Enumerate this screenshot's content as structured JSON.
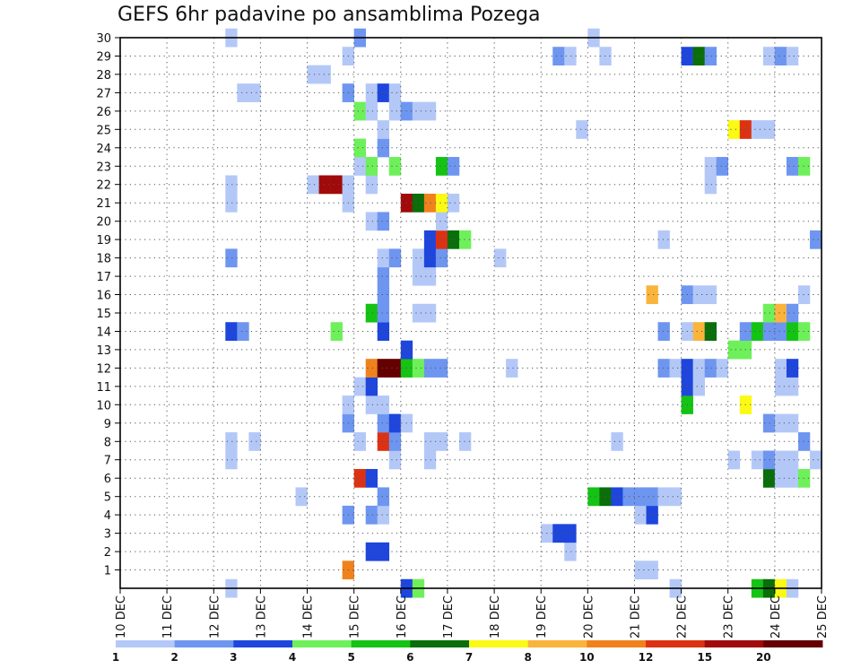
{
  "chart_data": {
    "type": "heatmap",
    "title": "GEFS 6hr padavine po ansamblima Pozega",
    "xlabel": "",
    "ylabel": "",
    "x_tick_labels": [
      "10 DEC",
      "11 DEC",
      "12 DEC",
      "13 DEC",
      "14 DEC",
      "15 DEC",
      "16 DEC",
      "17 DEC",
      "18 DEC",
      "19 DEC",
      "20 DEC",
      "21 DEC",
      "22 DEC",
      "23 DEC",
      "24 DEC",
      "25 DEC"
    ],
    "y_tick_labels": [
      "1",
      "2",
      "3",
      "4",
      "5",
      "6",
      "7",
      "8",
      "9",
      "10",
      "11",
      "12",
      "13",
      "14",
      "15",
      "16",
      "17",
      "18",
      "19",
      "20",
      "21",
      "22",
      "23",
      "24",
      "25",
      "26",
      "27",
      "28",
      "29",
      "30"
    ],
    "xlim_days": [
      10,
      25
    ],
    "ylim": [
      0,
      30
    ],
    "grid": true,
    "colorbar": {
      "colors": [
        "#b4c8f8",
        "#6e96f0",
        "#1e46dc",
        "#6ef05a",
        "#14c314",
        "#0a6e0a",
        "#fafa14",
        "#fab43c",
        "#f0821e",
        "#dc3214",
        "#a00a0a",
        "#640000"
      ],
      "labels": [
        "1",
        "2",
        "3",
        "4",
        "5",
        "6",
        "7",
        "8",
        "10",
        "12",
        "15",
        "20"
      ]
    },
    "cells": [
      {
        "d": "12.25",
        "m": 0,
        "b": 0
      },
      {
        "d": "16.00",
        "m": 0,
        "b": 2
      },
      {
        "d": "16.25",
        "m": 0,
        "b": 3
      },
      {
        "d": "21.75",
        "m": 0,
        "b": 0
      },
      {
        "d": "23.50",
        "m": 0,
        "b": 4
      },
      {
        "d": "23.75",
        "m": 0,
        "b": 5
      },
      {
        "d": "24.00",
        "m": 0,
        "b": 6
      },
      {
        "d": "24.25",
        "m": 0,
        "b": 0
      },
      {
        "d": "14.75",
        "m": 1,
        "b": 8
      },
      {
        "d": "21.00",
        "m": 1,
        "b": 0
      },
      {
        "d": "21.25",
        "m": 1,
        "b": 0
      },
      {
        "d": "15.25",
        "m": 2,
        "b": 2
      },
      {
        "d": "15.50",
        "m": 2,
        "b": 2
      },
      {
        "d": "19.50",
        "m": 2,
        "b": 0
      },
      {
        "d": "19.00",
        "m": 3,
        "b": 0
      },
      {
        "d": "19.25",
        "m": 3,
        "b": 2
      },
      {
        "d": "19.50",
        "m": 3,
        "b": 2
      },
      {
        "d": "14.75",
        "m": 4,
        "b": 1
      },
      {
        "d": "15.25",
        "m": 4,
        "b": 1
      },
      {
        "d": "15.50",
        "m": 4,
        "b": 0
      },
      {
        "d": "21.00",
        "m": 4,
        "b": 0
      },
      {
        "d": "21.25",
        "m": 4,
        "b": 2
      },
      {
        "d": "13.75",
        "m": 5,
        "b": 0
      },
      {
        "d": "15.50",
        "m": 5,
        "b": 1
      },
      {
        "d": "20.00",
        "m": 5,
        "b": 4
      },
      {
        "d": "20.25",
        "m": 5,
        "b": 5
      },
      {
        "d": "20.50",
        "m": 5,
        "b": 2
      },
      {
        "d": "20.75",
        "m": 5,
        "b": 1
      },
      {
        "d": "21.00",
        "m": 5,
        "b": 1
      },
      {
        "d": "21.25",
        "m": 5,
        "b": 1
      },
      {
        "d": "21.50",
        "m": 5,
        "b": 0
      },
      {
        "d": "21.75",
        "m": 5,
        "b": 0
      },
      {
        "d": "15.00",
        "m": 6,
        "b": 9
      },
      {
        "d": "15.25",
        "m": 6,
        "b": 2
      },
      {
        "d": "23.75",
        "m": 6,
        "b": 5
      },
      {
        "d": "24.00",
        "m": 6,
        "b": 0
      },
      {
        "d": "24.25",
        "m": 6,
        "b": 0
      },
      {
        "d": "24.50",
        "m": 6,
        "b": 3
      },
      {
        "d": "12.25",
        "m": 7,
        "b": 0
      },
      {
        "d": "15.75",
        "m": 7,
        "b": 0
      },
      {
        "d": "16.50",
        "m": 7,
        "b": 0
      },
      {
        "d": "23.00",
        "m": 7,
        "b": 0
      },
      {
        "d": "23.50",
        "m": 7,
        "b": 0
      },
      {
        "d": "23.75",
        "m": 7,
        "b": 1
      },
      {
        "d": "24.00",
        "m": 7,
        "b": 0
      },
      {
        "d": "24.25",
        "m": 7,
        "b": 0
      },
      {
        "d": "24.75",
        "m": 7,
        "b": 0
      },
      {
        "d": "12.25",
        "m": 8,
        "b": 0
      },
      {
        "d": "12.75",
        "m": 8,
        "b": 0
      },
      {
        "d": "15.00",
        "m": 8,
        "b": 0
      },
      {
        "d": "15.50",
        "m": 8,
        "b": 9
      },
      {
        "d": "15.75",
        "m": 8,
        "b": 1
      },
      {
        "d": "16.50",
        "m": 8,
        "b": 0
      },
      {
        "d": "16.75",
        "m": 8,
        "b": 0
      },
      {
        "d": "17.25",
        "m": 8,
        "b": 0
      },
      {
        "d": "20.50",
        "m": 8,
        "b": 0
      },
      {
        "d": "24.50",
        "m": 8,
        "b": 1
      },
      {
        "d": "14.75",
        "m": 9,
        "b": 1
      },
      {
        "d": "15.50",
        "m": 9,
        "b": 1
      },
      {
        "d": "15.75",
        "m": 9,
        "b": 2
      },
      {
        "d": "16.00",
        "m": 9,
        "b": 0
      },
      {
        "d": "23.75",
        "m": 9,
        "b": 1
      },
      {
        "d": "24.00",
        "m": 9,
        "b": 0
      },
      {
        "d": "24.25",
        "m": 9,
        "b": 0
      },
      {
        "d": "14.75",
        "m": 10,
        "b": 0
      },
      {
        "d": "15.25",
        "m": 10,
        "b": 0
      },
      {
        "d": "15.50",
        "m": 10,
        "b": 0
      },
      {
        "d": "22.00",
        "m": 10,
        "b": 4
      },
      {
        "d": "23.25",
        "m": 10,
        "b": 6
      },
      {
        "d": "15.00",
        "m": 11,
        "b": 0
      },
      {
        "d": "15.25",
        "m": 11,
        "b": 2
      },
      {
        "d": "22.00",
        "m": 11,
        "b": 2
      },
      {
        "d": "22.25",
        "m": 11,
        "b": 0
      },
      {
        "d": "24.00",
        "m": 11,
        "b": 0
      },
      {
        "d": "24.25",
        "m": 11,
        "b": 0
      },
      {
        "d": "15.25",
        "m": 12,
        "b": 8
      },
      {
        "d": "15.50",
        "m": 12,
        "b": 11
      },
      {
        "d": "15.75",
        "m": 12,
        "b": 11
      },
      {
        "d": "16.00",
        "m": 12,
        "b": 4
      },
      {
        "d": "16.25",
        "m": 12,
        "b": 3
      },
      {
        "d": "16.50",
        "m": 12,
        "b": 1
      },
      {
        "d": "16.75",
        "m": 12,
        "b": 1
      },
      {
        "d": "18.25",
        "m": 12,
        "b": 0
      },
      {
        "d": "21.50",
        "m": 12,
        "b": 1
      },
      {
        "d": "21.75",
        "m": 12,
        "b": 0
      },
      {
        "d": "22.00",
        "m": 12,
        "b": 2
      },
      {
        "d": "22.25",
        "m": 12,
        "b": 0
      },
      {
        "d": "22.50",
        "m": 12,
        "b": 1
      },
      {
        "d": "22.75",
        "m": 12,
        "b": 0
      },
      {
        "d": "24.00",
        "m": 12,
        "b": 0
      },
      {
        "d": "24.25",
        "m": 12,
        "b": 2
      },
      {
        "d": "16.00",
        "m": 13,
        "b": 2
      },
      {
        "d": "23.00",
        "m": 13,
        "b": 3
      },
      {
        "d": "23.25",
        "m": 13,
        "b": 3
      },
      {
        "d": "12.25",
        "m": 14,
        "b": 2
      },
      {
        "d": "12.50",
        "m": 14,
        "b": 1
      },
      {
        "d": "14.50",
        "m": 14,
        "b": 3
      },
      {
        "d": "15.50",
        "m": 14,
        "b": 2
      },
      {
        "d": "21.50",
        "m": 14,
        "b": 1
      },
      {
        "d": "22.00",
        "m": 14,
        "b": 0
      },
      {
        "d": "22.25",
        "m": 14,
        "b": 7
      },
      {
        "d": "22.50",
        "m": 14,
        "b": 5
      },
      {
        "d": "23.25",
        "m": 14,
        "b": 1
      },
      {
        "d": "23.50",
        "m": 14,
        "b": 4
      },
      {
        "d": "23.75",
        "m": 14,
        "b": 1
      },
      {
        "d": "24.00",
        "m": 14,
        "b": 1
      },
      {
        "d": "24.25",
        "m": 14,
        "b": 4
      },
      {
        "d": "24.50",
        "m": 14,
        "b": 3
      },
      {
        "d": "15.25",
        "m": 15,
        "b": 4
      },
      {
        "d": "15.50",
        "m": 15,
        "b": 1
      },
      {
        "d": "16.25",
        "m": 15,
        "b": 0
      },
      {
        "d": "16.50",
        "m": 15,
        "b": 0
      },
      {
        "d": "23.75",
        "m": 15,
        "b": 3
      },
      {
        "d": "24.00",
        "m": 15,
        "b": 7
      },
      {
        "d": "24.25",
        "m": 15,
        "b": 1
      },
      {
        "d": "15.50",
        "m": 16,
        "b": 1
      },
      {
        "d": "21.25",
        "m": 16,
        "b": 7
      },
      {
        "d": "22.00",
        "m": 16,
        "b": 1
      },
      {
        "d": "22.25",
        "m": 16,
        "b": 0
      },
      {
        "d": "22.50",
        "m": 16,
        "b": 0
      },
      {
        "d": "24.50",
        "m": 16,
        "b": 0
      },
      {
        "d": "15.50",
        "m": 17,
        "b": 1
      },
      {
        "d": "16.25",
        "m": 17,
        "b": 0
      },
      {
        "d": "16.50",
        "m": 17,
        "b": 0
      },
      {
        "d": "12.25",
        "m": 18,
        "b": 1
      },
      {
        "d": "15.50",
        "m": 18,
        "b": 0
      },
      {
        "d": "15.75",
        "m": 18,
        "b": 1
      },
      {
        "d": "16.25",
        "m": 18,
        "b": 0
      },
      {
        "d": "16.50",
        "m": 18,
        "b": 2
      },
      {
        "d": "16.75",
        "m": 18,
        "b": 1
      },
      {
        "d": "18.00",
        "m": 18,
        "b": 0
      },
      {
        "d": "16.50",
        "m": 19,
        "b": 2
      },
      {
        "d": "16.75",
        "m": 19,
        "b": 9
      },
      {
        "d": "17.00",
        "m": 19,
        "b": 5
      },
      {
        "d": "17.25",
        "m": 19,
        "b": 3
      },
      {
        "d": "21.50",
        "m": 19,
        "b": 0
      },
      {
        "d": "24.75",
        "m": 19,
        "b": 1
      },
      {
        "d": "15.25",
        "m": 20,
        "b": 0
      },
      {
        "d": "15.50",
        "m": 20,
        "b": 1
      },
      {
        "d": "16.75",
        "m": 20,
        "b": 0
      },
      {
        "d": "12.25",
        "m": 21,
        "b": 0
      },
      {
        "d": "14.75",
        "m": 21,
        "b": 0
      },
      {
        "d": "16.00",
        "m": 21,
        "b": 10
      },
      {
        "d": "16.25",
        "m": 21,
        "b": 5
      },
      {
        "d": "16.50",
        "m": 21,
        "b": 8
      },
      {
        "d": "16.75",
        "m": 21,
        "b": 6
      },
      {
        "d": "17.00",
        "m": 21,
        "b": 0
      },
      {
        "d": "12.25",
        "m": 22,
        "b": 0
      },
      {
        "d": "14.00",
        "m": 22,
        "b": 0
      },
      {
        "d": "14.25",
        "m": 22,
        "b": 10
      },
      {
        "d": "14.50",
        "m": 22,
        "b": 10
      },
      {
        "d": "14.75",
        "m": 22,
        "b": 0
      },
      {
        "d": "15.25",
        "m": 22,
        "b": 0
      },
      {
        "d": "22.50",
        "m": 22,
        "b": 0
      },
      {
        "d": "15.00",
        "m": 23,
        "b": 0
      },
      {
        "d": "15.25",
        "m": 23,
        "b": 3
      },
      {
        "d": "15.75",
        "m": 23,
        "b": 3
      },
      {
        "d": "16.75",
        "m": 23,
        "b": 4
      },
      {
        "d": "17.00",
        "m": 23,
        "b": 1
      },
      {
        "d": "22.50",
        "m": 23,
        "b": 0
      },
      {
        "d": "22.75",
        "m": 23,
        "b": 1
      },
      {
        "d": "24.25",
        "m": 23,
        "b": 1
      },
      {
        "d": "24.50",
        "m": 23,
        "b": 3
      },
      {
        "d": "15.00",
        "m": 24,
        "b": 3
      },
      {
        "d": "15.50",
        "m": 24,
        "b": 1
      },
      {
        "d": "15.50",
        "m": 25,
        "b": 0
      },
      {
        "d": "19.75",
        "m": 25,
        "b": 0
      },
      {
        "d": "23.00",
        "m": 25,
        "b": 6
      },
      {
        "d": "23.25",
        "m": 25,
        "b": 9
      },
      {
        "d": "23.50",
        "m": 25,
        "b": 0
      },
      {
        "d": "23.75",
        "m": 25,
        "b": 0
      },
      {
        "d": "15.00",
        "m": 26,
        "b": 3
      },
      {
        "d": "15.25",
        "m": 26,
        "b": 0
      },
      {
        "d": "15.75",
        "m": 26,
        "b": 0
      },
      {
        "d": "16.00",
        "m": 26,
        "b": 1
      },
      {
        "d": "16.25",
        "m": 26,
        "b": 0
      },
      {
        "d": "16.50",
        "m": 26,
        "b": 0
      },
      {
        "d": "12.50",
        "m": 27,
        "b": 0
      },
      {
        "d": "12.75",
        "m": 27,
        "b": 0
      },
      {
        "d": "14.75",
        "m": 27,
        "b": 1
      },
      {
        "d": "15.25",
        "m": 27,
        "b": 0
      },
      {
        "d": "15.50",
        "m": 27,
        "b": 2
      },
      {
        "d": "15.75",
        "m": 27,
        "b": 0
      },
      {
        "d": "14.00",
        "m": 28,
        "b": 0
      },
      {
        "d": "14.25",
        "m": 28,
        "b": 0
      },
      {
        "d": "14.75",
        "m": 29,
        "b": 0
      },
      {
        "d": "19.25",
        "m": 29,
        "b": 1
      },
      {
        "d": "19.50",
        "m": 29,
        "b": 0
      },
      {
        "d": "20.25",
        "m": 29,
        "b": 0
      },
      {
        "d": "22.00",
        "m": 29,
        "b": 2
      },
      {
        "d": "22.25",
        "m": 29,
        "b": 5
      },
      {
        "d": "22.50",
        "m": 29,
        "b": 1
      },
      {
        "d": "23.75",
        "m": 29,
        "b": 0
      },
      {
        "d": "24.00",
        "m": 29,
        "b": 1
      },
      {
        "d": "24.25",
        "m": 29,
        "b": 0
      },
      {
        "d": "12.25",
        "m": 30,
        "b": 0
      },
      {
        "d": "15.00",
        "m": 30,
        "b": 1
      },
      {
        "d": "20.00",
        "m": 30,
        "b": 0
      }
    ]
  }
}
